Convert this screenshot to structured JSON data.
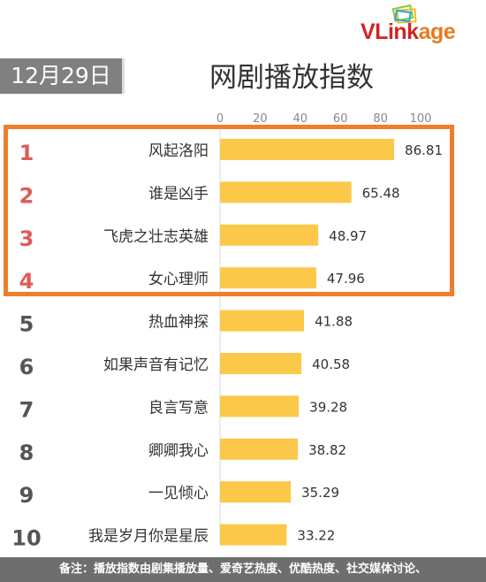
{
  "header": {
    "date": "12月29日",
    "title": "网剧播放指数",
    "logo": "VLinkage"
  },
  "footnote": "备注：播放指数由剧集播放量、爱奇艺热度、优酷热度、社交媒体讨论、",
  "colors": {
    "bar": "#fcc84a",
    "rank_top": "#e05a5a",
    "rank_rest": "#555555",
    "highlight": "#f07d2b"
  },
  "chart_data": {
    "type": "bar",
    "orientation": "horizontal",
    "title": "网剧播放指数",
    "xlim": [
      0,
      100
    ],
    "x_ticks": [
      0,
      20,
      40,
      60,
      80,
      100
    ],
    "ranks": [
      "1",
      "2",
      "3",
      "4",
      "5",
      "6",
      "7",
      "8",
      "9",
      "10"
    ],
    "categories": [
      "风起洛阳",
      "谁是凶手",
      "飞虎之壮志英雄",
      "女心理师",
      "热血神探",
      "如果声音有记忆",
      "良言写意",
      "卿卿我心",
      "一见倾心",
      "我是岁月你是星辰"
    ],
    "values": [
      86.81,
      65.48,
      48.97,
      47.96,
      41.88,
      40.58,
      39.28,
      38.82,
      35.29,
      33.22
    ],
    "grid": false,
    "legend": "none"
  }
}
